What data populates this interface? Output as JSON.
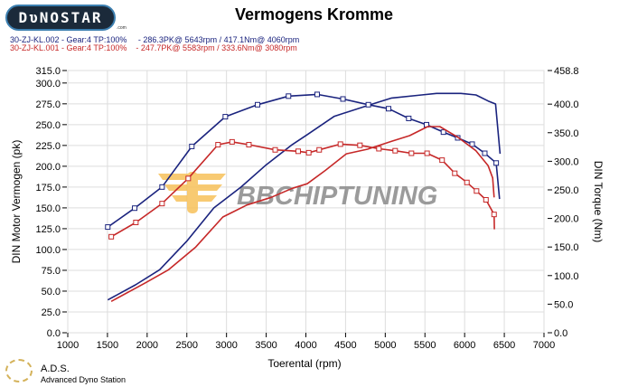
{
  "header": {
    "logo": "DYNOSTAR",
    "title": "Vermogens Kromme",
    "runs": [
      {
        "label": "30-ZJ-KL.002 - Gear:4 TP:100%     - 286.3PK@ 5643rpm / 417.1Nm@ 4060rpm",
        "color": "#1a237e"
      },
      {
        "label": "30-ZJ-KL.001 - Gear:4 TP:100%    - 247.7PK@ 5583rpm / 333.6Nm@ 3080rpm",
        "color": "#c62828"
      }
    ]
  },
  "watermark": "BBCHIPTUNING",
  "footer": {
    "ads_title": "A.D.S.",
    "ads_subtitle": "Advanced Dyno Station"
  },
  "chart_data": {
    "type": "line",
    "title": "Vermogens Kromme",
    "xlabel": "Toerental (rpm)",
    "ylabel": "DIN Motor Vermogen (pk)",
    "y2label": "DIN Torque (Nm)",
    "xlim": [
      1000,
      7000
    ],
    "ylim": [
      0,
      315
    ],
    "y2lim": [
      0,
      458.8
    ],
    "grid": true,
    "xticks": [
      "1000",
      "1500",
      "2000",
      "2500",
      "3000",
      "3500",
      "4000",
      "4500",
      "5000",
      "5500",
      "6000",
      "6500",
      "7000"
    ],
    "yticks": [
      "315.0",
      "300.0",
      "275.0",
      "250.0",
      "225.0",
      "200.0",
      "175.0",
      "150.0",
      "125.0",
      "100.0",
      "75.0",
      "50.0",
      "25.0",
      "0.0"
    ],
    "y2ticks": [
      "458.8",
      "400.0",
      "350.0",
      "300.0",
      "250.0",
      "200.0",
      "150.0",
      "100.0",
      "50.0",
      "0.0"
    ],
    "series": [
      {
        "run": "30-ZJ-KL.002",
        "quantity": "power",
        "axis": "left",
        "color": "#1a237e",
        "x": [
          1504,
          1854,
          2158,
          2499,
          2841,
          3182,
          3486,
          3828,
          4017,
          4359,
          4776,
          5080,
          5459,
          5646,
          5953,
          6143,
          6296,
          6390,
          6447
        ],
        "y": [
          39.4,
          57.6,
          75.7,
          110,
          150,
          175,
          200.6,
          226,
          238,
          260,
          273,
          282,
          285.7,
          287.5,
          287.5,
          285.7,
          278.4,
          274.8,
          215
        ]
      },
      {
        "run": "30-ZJ-KL.002",
        "quantity": "torque",
        "axis": "right",
        "color": "#1a237e",
        "markers": true,
        "x": [
          1504,
          1843,
          2188,
          2563,
          2985,
          3391,
          3781,
          4142,
          4467,
          4787,
          5042,
          5296,
          5520,
          5733,
          5913,
          6095,
          6254,
          6398,
          6440
        ],
        "y": [
          185,
          218,
          255,
          326,
          378,
          399,
          414,
          417,
          409,
          399,
          392,
          375,
          364,
          351,
          341,
          330,
          314,
          297,
          234
        ]
      },
      {
        "run": "30-ZJ-KL.001",
        "quantity": "power",
        "axis": "left",
        "color": "#c62828",
        "x": [
          1548,
          1968,
          2271,
          2612,
          2954,
          3258,
          3562,
          3828,
          4017,
          4245,
          4510,
          4776,
          5080,
          5307,
          5535,
          5687,
          5913,
          6143,
          6296,
          6353,
          6371
        ],
        "y": [
          37.7,
          59.4,
          75.7,
          103,
          139,
          153.5,
          162.6,
          173.5,
          179,
          195,
          215,
          220.5,
          230,
          236.8,
          247.7,
          247.7,
          235,
          218.7,
          200.6,
          186,
          162.6
        ]
      },
      {
        "run": "30-ZJ-KL.001",
        "quantity": "torque",
        "axis": "right",
        "color": "#c62828",
        "markers": true,
        "x": [
          1548,
          1858,
          2188,
          2518,
          2893,
          3070,
          3282,
          3613,
          3903,
          4036,
          4168,
          4435,
          4681,
          4920,
          5125,
          5330,
          5527,
          5716,
          5876,
          6029,
          6150,
          6269,
          6371,
          6375
        ],
        "y": [
          168,
          193,
          226,
          270,
          329,
          334,
          329,
          320,
          317.5,
          315,
          320,
          330,
          328,
          322,
          318.5,
          314,
          314,
          302,
          279,
          263,
          248,
          232.6,
          207,
          181
        ]
      }
    ]
  }
}
